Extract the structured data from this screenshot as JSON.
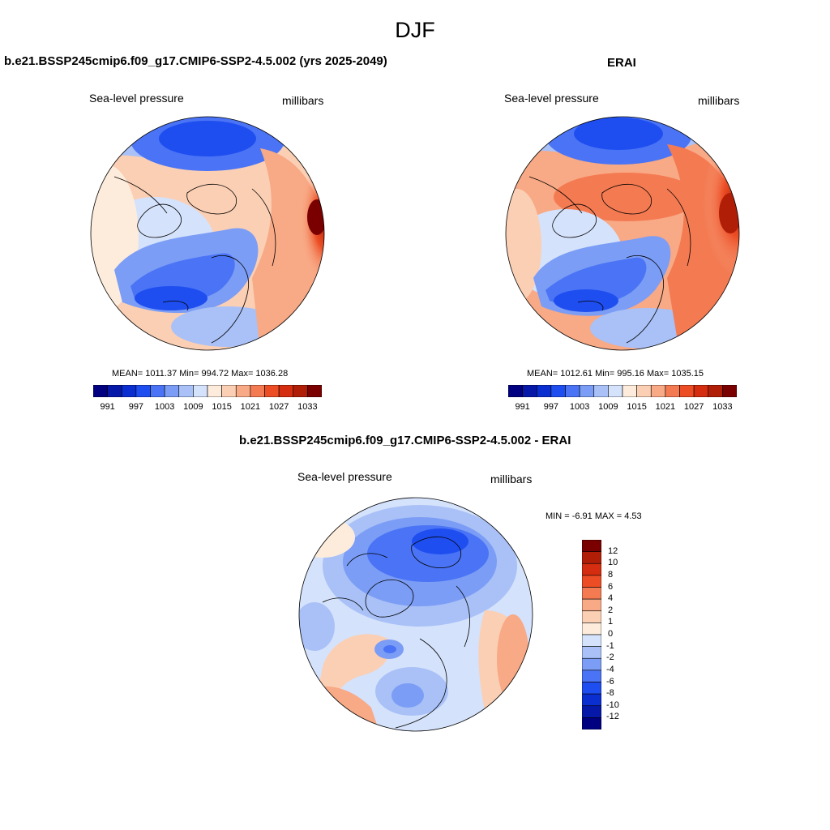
{
  "figure_title": "DJF",
  "panels": [
    {
      "title": "b.e21.BSSP245cmip6.f09_g17.CMIP6-SSP2-4.5.002 (yrs 2025-2049)",
      "left_label": "Sea-level pressure",
      "right_label": "millibars",
      "stats": "MEAN= 1011.37  Min= 994.72  Max= 1036.28"
    },
    {
      "title": "ERAI",
      "left_label": "Sea-level pressure",
      "right_label": "millibars",
      "stats": "MEAN= 1012.61  Min= 995.16  Max= 1035.15"
    },
    {
      "title": "b.e21.BSSP245cmip6.f09_g17.CMIP6-SSP2-4.5.002 - ERAI",
      "left_label": "Sea-level pressure",
      "right_label": "millibars",
      "stats": "MIN =  -6.91 MAX =   4.53"
    }
  ],
  "field_colorbar": {
    "colors": [
      "#000080",
      "#0618a8",
      "#0a2ed0",
      "#1f4ef0",
      "#4a74f5",
      "#7b9df5",
      "#a9c1f7",
      "#d4e2fb",
      "#fdecdc",
      "#fbcfb4",
      "#f8a985",
      "#f47a52",
      "#ec4d24",
      "#d52d0f",
      "#b01e08",
      "#7a0000"
    ],
    "labels": [
      "991",
      "997",
      "1003",
      "1009",
      "1015",
      "1021",
      "1027",
      "1033"
    ]
  },
  "diff_colorbar": {
    "colors": [
      "#7a0000",
      "#b01e08",
      "#d52d0f",
      "#ec4d24",
      "#f47a52",
      "#f8a985",
      "#fbcfb4",
      "#fdecdc",
      "#d4e2fb",
      "#a9c1f7",
      "#7b9df5",
      "#4a74f5",
      "#1f4ef0",
      "#0a2ed0",
      "#0618a8",
      "#000080"
    ],
    "labels": [
      "12",
      "10",
      "8",
      "6",
      "4",
      "2",
      "1",
      "0",
      "-1",
      "-2",
      "-4",
      "-6",
      "-8",
      "-10",
      "-12"
    ]
  }
}
